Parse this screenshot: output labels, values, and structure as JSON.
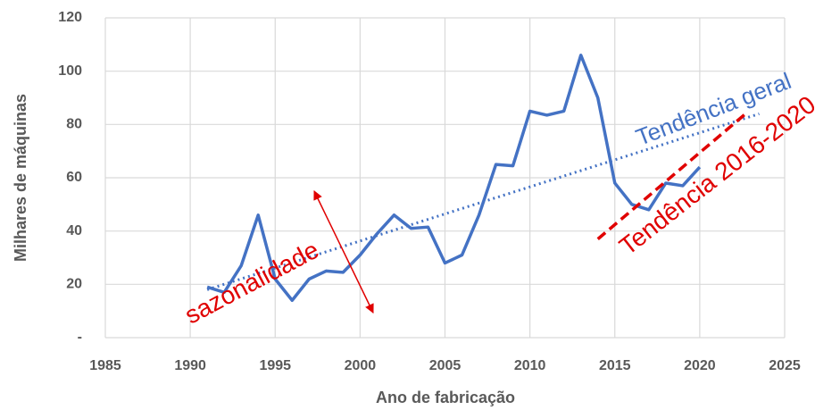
{
  "chart_data": {
    "type": "line",
    "x_label": "Ano de fabricação",
    "y_label": "Milhares de máquinas",
    "x": [
      1991,
      1992,
      1993,
      1994,
      1995,
      1996,
      1997,
      1998,
      1999,
      2000,
      2001,
      2002,
      2003,
      2004,
      2005,
      2006,
      2007,
      2008,
      2009,
      2010,
      2011,
      2012,
      2013,
      2014,
      2015,
      2016,
      2017,
      2018,
      2019,
      2020
    ],
    "series": [
      {
        "color": "#4472c4",
        "values": [
          19,
          17,
          27,
          46,
          22,
          14,
          22,
          25,
          24.5,
          31,
          39,
          46,
          41,
          41.5,
          28,
          31,
          46,
          65,
          64.5,
          85,
          83.5,
          85,
          106,
          90,
          58,
          50,
          48,
          58,
          57,
          64
        ]
      }
    ],
    "trend_general": {
      "x": [
        1991,
        2023.5
      ],
      "values": [
        18,
        84
      ],
      "color": "#4472c4"
    },
    "trend_recent": {
      "x": [
        2014,
        2022.7
      ],
      "values": [
        37,
        84
      ],
      "color": "#e00000"
    },
    "xlim": [
      1985,
      2025
    ],
    "xticks": [
      1985,
      1990,
      1995,
      2000,
      2005,
      2010,
      2015,
      2020,
      2025
    ],
    "ylim": [
      0,
      120
    ],
    "yticks": [
      {
        "value": 0,
        "label": "-"
      },
      20,
      40,
      60,
      80,
      100,
      120
    ],
    "grid": true,
    "annotations": [
      "sazonalidade",
      "Tendência geral",
      "Tendência 2016-2020"
    ]
  }
}
